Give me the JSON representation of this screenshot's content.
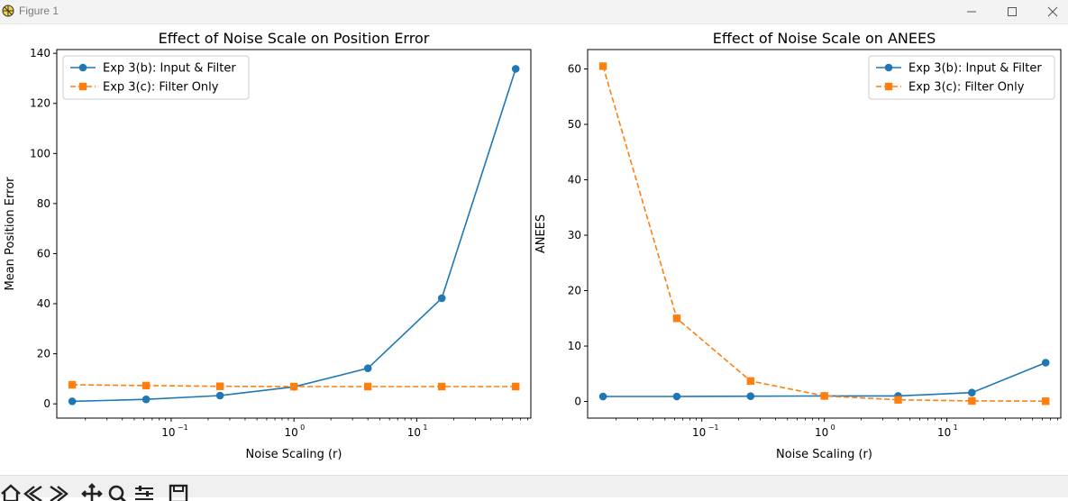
{
  "window": {
    "title": "Figure 1",
    "icon": "matplotlib-figure-icon",
    "controls": [
      "minimize-icon",
      "maximize-icon",
      "close-icon"
    ]
  },
  "toolbar": {
    "icons": [
      "home-icon",
      "back-icon",
      "forward-icon",
      "pan-icon",
      "zoom-icon",
      "configure-subplots-icon",
      "save-icon"
    ]
  },
  "colors": {
    "series_b": "#1f77b4",
    "series_c": "#ff7f0e"
  },
  "chart_data": [
    {
      "type": "line",
      "title": "Effect of Noise Scale on Position Error",
      "xlabel": "Noise Scaling (r)",
      "ylabel": "Mean Position Error",
      "xscale": "log",
      "xlim": [
        0.0117,
        85
      ],
      "ylim": [
        -5.7,
        141.5
      ],
      "xticks": [
        {
          "value": 0.1,
          "base": "10",
          "exp": "−1"
        },
        {
          "value": 1,
          "base": "10",
          "exp": "0"
        },
        {
          "value": 10,
          "base": "10",
          "exp": "1"
        }
      ],
      "yticks": [
        0,
        20,
        40,
        60,
        80,
        100,
        120,
        140
      ],
      "x": [
        0.015625,
        0.0625,
        0.25,
        1,
        4,
        16,
        64
      ],
      "series": [
        {
          "name": "Exp 3(b): Input & Filter",
          "style": "solid",
          "marker": "circle",
          "color": "#1f77b4",
          "values": [
            1.0,
            1.8,
            3.3,
            6.8,
            14.2,
            42.2,
            133.8
          ]
        },
        {
          "name": "Exp 3(c): Filter Only",
          "style": "dashed",
          "marker": "square",
          "color": "#ff7f0e",
          "values": [
            7.6,
            7.3,
            7.0,
            6.9,
            6.9,
            6.9,
            6.9
          ]
        }
      ],
      "legend": "upper left"
    },
    {
      "type": "line",
      "title": "Effect of Noise Scale on ANEES",
      "xlabel": "Noise Scaling (r)",
      "ylabel": "ANEES",
      "xscale": "log",
      "xlim": [
        0.0117,
        85
      ],
      "ylim": [
        -3.0,
        63.5
      ],
      "xticks": [
        {
          "value": 0.1,
          "base": "10",
          "exp": "−1"
        },
        {
          "value": 1,
          "base": "10",
          "exp": "0"
        },
        {
          "value": 10,
          "base": "10",
          "exp": "1"
        }
      ],
      "yticks": [
        0,
        10,
        20,
        30,
        40,
        50,
        60
      ],
      "x": [
        0.015625,
        0.0625,
        0.25,
        1,
        4,
        16,
        64
      ],
      "series": [
        {
          "name": "Exp 3(b): Input & Filter",
          "style": "solid",
          "marker": "circle",
          "color": "#1f77b4",
          "values": [
            0.9,
            0.9,
            0.95,
            1.0,
            1.0,
            1.6,
            7.0
          ]
        },
        {
          "name": "Exp 3(c): Filter Only",
          "style": "dashed",
          "marker": "square",
          "color": "#ff7f0e",
          "values": [
            60.5,
            15.0,
            3.7,
            1.0,
            0.3,
            0.1,
            0.05
          ]
        }
      ],
      "legend": "upper right"
    }
  ]
}
